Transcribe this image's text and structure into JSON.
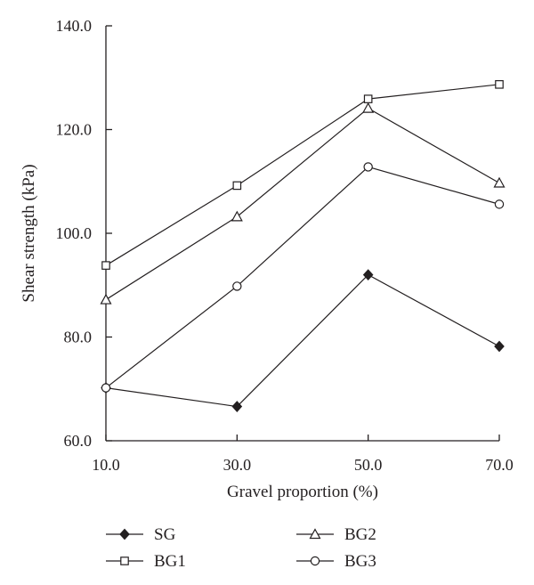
{
  "chart_data": {
    "type": "line",
    "title": "",
    "xlabel": "Gravel proportion (%)",
    "ylabel": "Shear strength (kPa)",
    "x": [
      10,
      30,
      50,
      70
    ],
    "x_tick_labels": [
      "10.0",
      "30.0",
      "50.0",
      "70.0"
    ],
    "y_tick_labels": [
      "60.0",
      "80.0",
      "100.0",
      "120.0",
      "140.0"
    ],
    "xlim": [
      10,
      70
    ],
    "ylim": [
      60,
      140
    ],
    "y_ticks": [
      60,
      80,
      100,
      120,
      140
    ],
    "grid": false,
    "legend_position": "bottom",
    "series": [
      {
        "name": "SG",
        "marker": "diamond-filled",
        "values": [
          70.2,
          66.6,
          92.0,
          78.2
        ]
      },
      {
        "name": "BG1",
        "marker": "square-open",
        "values": [
          93.8,
          109.2,
          125.9,
          128.7
        ]
      },
      {
        "name": "BG2",
        "marker": "triangle-open",
        "values": [
          87.2,
          103.2,
          124.1,
          109.7
        ]
      },
      {
        "name": "BG3",
        "marker": "circle-open",
        "values": [
          70.2,
          89.8,
          112.8,
          105.6
        ]
      }
    ],
    "colors": {
      "line": "#231f20",
      "background": "#ffffff"
    }
  }
}
